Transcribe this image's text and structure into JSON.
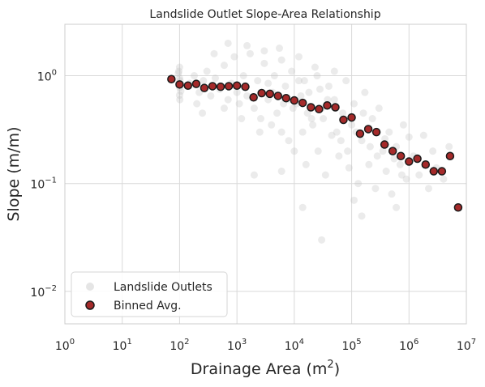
{
  "chart_data": {
    "type": "scatter",
    "title": "Landslide Outlet Slope-Area Relationship",
    "xlabel": "Drainage Area (m",
    "xlabel_sup": "2",
    "xlabel_end": ")",
    "ylabel": "Slope (m/m)",
    "x_scale": "log",
    "y_scale": "log",
    "xlim": [
      1,
      10000000
    ],
    "ylim": [
      0.005,
      3
    ],
    "x_ticks": [
      {
        "value": 1,
        "base": "10",
        "exp": "0"
      },
      {
        "value": 10,
        "base": "10",
        "exp": "1"
      },
      {
        "value": 100,
        "base": "10",
        "exp": "2"
      },
      {
        "value": 1000,
        "base": "10",
        "exp": "3"
      },
      {
        "value": 10000,
        "base": "10",
        "exp": "4"
      },
      {
        "value": 100000,
        "base": "10",
        "exp": "5"
      },
      {
        "value": 1000000,
        "base": "10",
        "exp": "6"
      },
      {
        "value": 10000000,
        "base": "10",
        "exp": "7"
      }
    ],
    "y_ticks": [
      {
        "value": 0.01,
        "base": "10",
        "exp": "−2"
      },
      {
        "value": 0.1,
        "base": "10",
        "exp": "−1"
      },
      {
        "value": 1,
        "base": "10",
        "exp": "0"
      }
    ],
    "grid": true,
    "legend_position": "lower-left",
    "colors": {
      "outlets": "#bdbdbd",
      "binned_fill": "#a52a2a",
      "binned_edge": "#1a1a1a",
      "grid": "#d9d9d9",
      "spine": "#cccccc"
    },
    "series": [
      {
        "name": "Landslide Outlets",
        "kind": "cloud",
        "points": [
          [
            100,
            1.2
          ],
          [
            95,
            1.05
          ],
          [
            100,
            0.95
          ],
          [
            102,
            0.9
          ],
          [
            98,
            0.85
          ],
          [
            100,
            0.78
          ],
          [
            105,
            0.72
          ],
          [
            100,
            0.66
          ],
          [
            97,
            1.1
          ],
          [
            101,
            0.6
          ],
          [
            150,
            0.85
          ],
          [
            180,
            1.0
          ],
          [
            220,
            0.7
          ],
          [
            260,
            0.9
          ],
          [
            300,
            1.1
          ],
          [
            350,
            0.65
          ],
          [
            420,
            0.95
          ],
          [
            500,
            0.75
          ],
          [
            600,
            1.25
          ],
          [
            700,
            0.6
          ],
          [
            800,
            0.85
          ],
          [
            900,
            1.5
          ],
          [
            1000,
            0.7
          ],
          [
            1100,
            0.55
          ],
          [
            1300,
            1.0
          ],
          [
            1500,
            0.65
          ],
          [
            1700,
            1.6
          ],
          [
            2000,
            0.5
          ],
          [
            2300,
            0.9
          ],
          [
            2600,
            0.4
          ],
          [
            3000,
            1.3
          ],
          [
            3500,
            0.6
          ],
          [
            4000,
            0.35
          ],
          [
            4500,
            1.0
          ],
          [
            5000,
            0.45
          ],
          [
            5500,
            1.8
          ],
          [
            6000,
            0.3
          ],
          [
            7000,
            0.8
          ],
          [
            8000,
            0.25
          ],
          [
            9000,
            1.1
          ],
          [
            10000,
            0.2
          ],
          [
            11000,
            0.55
          ],
          [
            12000,
            0.9
          ],
          [
            14000,
            0.3
          ],
          [
            16000,
            0.15
          ],
          [
            18000,
            0.7
          ],
          [
            20000,
            0.4
          ],
          [
            23000,
            1.2
          ],
          [
            26000,
            0.2
          ],
          [
            30000,
            0.5
          ],
          [
            35000,
            0.12
          ],
          [
            40000,
            0.8
          ],
          [
            45000,
            0.28
          ],
          [
            50000,
            0.6
          ],
          [
            60000,
            0.18
          ],
          [
            70000,
            0.45
          ],
          [
            80000,
            0.9
          ],
          [
            90000,
            0.14
          ],
          [
            100000,
            0.35
          ],
          [
            110000,
            0.55
          ],
          [
            130000,
            0.1
          ],
          [
            150000,
            0.25
          ],
          [
            170000,
            0.7
          ],
          [
            200000,
            0.15
          ],
          [
            230000,
            0.4
          ],
          [
            260000,
            0.09
          ],
          [
            300000,
            0.5
          ],
          [
            350000,
            0.2
          ],
          [
            400000,
            0.13
          ],
          [
            450000,
            0.3
          ],
          [
            500000,
            0.08
          ],
          [
            600000,
            0.22
          ],
          [
            700000,
            0.15
          ],
          [
            800000,
            0.35
          ],
          [
            900000,
            0.11
          ],
          [
            1000000,
            0.27
          ],
          [
            1200000,
            0.18
          ],
          [
            1500000,
            0.12
          ],
          [
            1800000,
            0.28
          ],
          [
            2200000,
            0.09
          ],
          [
            2600000,
            0.2
          ],
          [
            3000000,
            0.14
          ],
          [
            4000000,
            0.11
          ],
          [
            5000000,
            0.22
          ],
          [
            400,
            1.6
          ],
          [
            700,
            2.0
          ],
          [
            1500,
            1.9
          ],
          [
            3000,
            1.7
          ],
          [
            6000,
            1.4
          ],
          [
            12000,
            1.5
          ],
          [
            25000,
            1.0
          ],
          [
            50000,
            1.1
          ],
          [
            200,
            0.55
          ],
          [
            250,
            0.45
          ],
          [
            600,
            0.5
          ],
          [
            1200,
            0.4
          ],
          [
            2500,
            0.3
          ],
          [
            8000,
            0.6
          ],
          [
            15000,
            0.9
          ],
          [
            28000,
            0.75
          ],
          [
            3500,
            0.85
          ],
          [
            4200,
            0.7
          ],
          [
            5200,
            0.65
          ],
          [
            6500,
            0.55
          ],
          [
            9500,
            0.5
          ],
          [
            13000,
            0.65
          ],
          [
            17000,
            0.45
          ],
          [
            21000,
            0.35
          ],
          [
            32000,
            0.4
          ],
          [
            38000,
            0.6
          ],
          [
            55000,
            0.3
          ],
          [
            65000,
            0.25
          ],
          [
            85000,
            0.2
          ],
          [
            120000,
            0.3
          ],
          [
            160000,
            0.45
          ],
          [
            210000,
            0.22
          ],
          [
            280000,
            0.18
          ],
          [
            380000,
            0.26
          ],
          [
            550000,
            0.17
          ],
          [
            750000,
            0.12
          ],
          [
            30000,
            0.03
          ],
          [
            150000,
            0.05
          ],
          [
            14000,
            0.06
          ],
          [
            110000,
            0.07
          ],
          [
            600000,
            0.06
          ],
          [
            2000,
            0.12
          ],
          [
            6000,
            0.13
          ]
        ]
      },
      {
        "name": "Binned Avg.",
        "kind": "binned",
        "points": [
          [
            72,
            0.93
          ],
          [
            100,
            0.83
          ],
          [
            140,
            0.81
          ],
          [
            195,
            0.84
          ],
          [
            270,
            0.77
          ],
          [
            375,
            0.8
          ],
          [
            520,
            0.79
          ],
          [
            720,
            0.8
          ],
          [
            1000,
            0.81
          ],
          [
            1400,
            0.79
          ],
          [
            1950,
            0.63
          ],
          [
            2700,
            0.69
          ],
          [
            3750,
            0.68
          ],
          [
            5200,
            0.65
          ],
          [
            7200,
            0.62
          ],
          [
            10000,
            0.59
          ],
          [
            14000,
            0.56
          ],
          [
            19500,
            0.51
          ],
          [
            27000,
            0.49
          ],
          [
            37500,
            0.53
          ],
          [
            52000,
            0.51
          ],
          [
            72000,
            0.39
          ],
          [
            100000,
            0.41
          ],
          [
            140000,
            0.29
          ],
          [
            195000,
            0.32
          ],
          [
            270000,
            0.3
          ],
          [
            375000,
            0.23
          ],
          [
            520000,
            0.2
          ],
          [
            720000,
            0.18
          ],
          [
            1000000,
            0.16
          ],
          [
            1400000,
            0.17
          ],
          [
            1950000,
            0.15
          ],
          [
            2700000,
            0.13
          ],
          [
            3750000,
            0.13
          ],
          [
            5200000,
            0.18
          ],
          [
            7200000,
            0.06
          ]
        ]
      }
    ]
  }
}
